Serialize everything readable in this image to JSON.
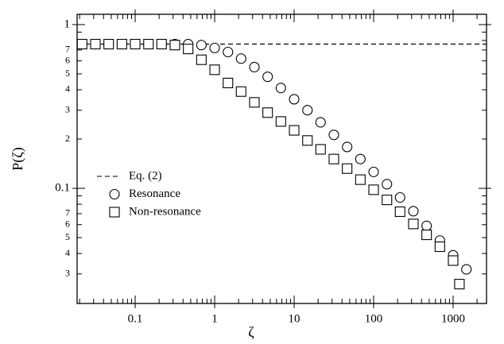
{
  "chart_data": {
    "type": "scatter",
    "xlabel": "ζ",
    "ylabel": "P(ζ)",
    "xscale": "log",
    "yscale": "log",
    "xlim": [
      0.0186,
      2630
    ],
    "ylim": [
      0.0198,
      1.156
    ],
    "xticks": [
      0.1,
      1,
      10,
      100,
      1000
    ],
    "xminor": [
      0.02,
      0.03,
      0.04,
      0.05,
      0.06,
      0.07,
      0.08,
      0.09,
      0.2,
      0.3,
      0.4,
      0.5,
      0.6,
      0.7,
      0.8,
      0.9,
      2,
      3,
      4,
      5,
      6,
      7,
      8,
      9,
      20,
      30,
      40,
      50,
      60,
      70,
      80,
      90,
      200,
      300,
      400,
      500,
      600,
      700,
      800,
      900,
      2000
    ],
    "yticks": [
      1,
      {
        "value": 0.7,
        "label": "7"
      },
      {
        "value": 0.6,
        "label": "6"
      },
      {
        "value": 0.5,
        "label": "5"
      },
      {
        "value": 0.4,
        "label": "4"
      },
      {
        "value": 0.3,
        "label": "3"
      },
      {
        "value": 0.2,
        "label": "2"
      },
      0.1,
      {
        "value": 0.07,
        "label": "7"
      },
      {
        "value": 0.06,
        "label": "6"
      },
      {
        "value": 0.05,
        "label": "5"
      },
      {
        "value": 0.04,
        "label": "4"
      },
      {
        "value": 0.03,
        "label": "3"
      }
    ],
    "yminor": [
      0.9,
      0.8,
      0.09,
      0.08
    ],
    "legend": "center left",
    "series": [
      {
        "name": "Eq. (2)",
        "marker": "dashed-line",
        "color": "#000000",
        "x": [
          0.0186,
          2630
        ],
        "values": [
          0.76,
          0.76
        ]
      },
      {
        "name": "Resonance",
        "marker": "circle",
        "color": "#000000",
        "x": [
          0.0215,
          0.0316,
          0.0464,
          0.0681,
          0.1,
          0.147,
          0.215,
          0.316,
          0.464,
          0.681,
          1,
          1.47,
          2.15,
          3.16,
          4.64,
          6.81,
          10,
          14.7,
          21.5,
          31.6,
          46.4,
          68.1,
          100,
          147,
          215,
          316,
          464,
          681,
          1000,
          1470,
          1200
        ],
        "values": [
          0.76,
          0.76,
          0.76,
          0.76,
          0.76,
          0.76,
          0.76,
          0.76,
          0.76,
          0.75,
          0.72,
          0.68,
          0.62,
          0.55,
          0.48,
          0.41,
          0.35,
          0.3,
          0.253,
          0.212,
          0.179,
          0.151,
          0.126,
          0.106,
          0.088,
          0.0725,
          0.059,
          0.048,
          0.039,
          0.032,
          0.026
        ]
      },
      {
        "name": "Non-resonance",
        "marker": "square",
        "color": "#000000",
        "x": [
          0.0215,
          0.0316,
          0.0464,
          0.0681,
          0.1,
          0.147,
          0.215,
          0.316,
          0.464,
          0.681,
          1,
          1.47,
          2.15,
          3.16,
          4.64,
          6.81,
          10,
          14.7,
          21.5,
          31.6,
          46.4,
          68.1,
          100,
          147,
          215,
          316,
          464,
          681,
          1000,
          1200
        ],
        "values": [
          0.76,
          0.76,
          0.76,
          0.76,
          0.76,
          0.76,
          0.76,
          0.75,
          0.71,
          0.61,
          0.53,
          0.44,
          0.39,
          0.335,
          0.29,
          0.256,
          0.226,
          0.196,
          0.173,
          0.151,
          0.132,
          0.113,
          0.098,
          0.085,
          0.072,
          0.0606,
          0.052,
          0.044,
          0.0362,
          0.026
        ]
      }
    ]
  }
}
